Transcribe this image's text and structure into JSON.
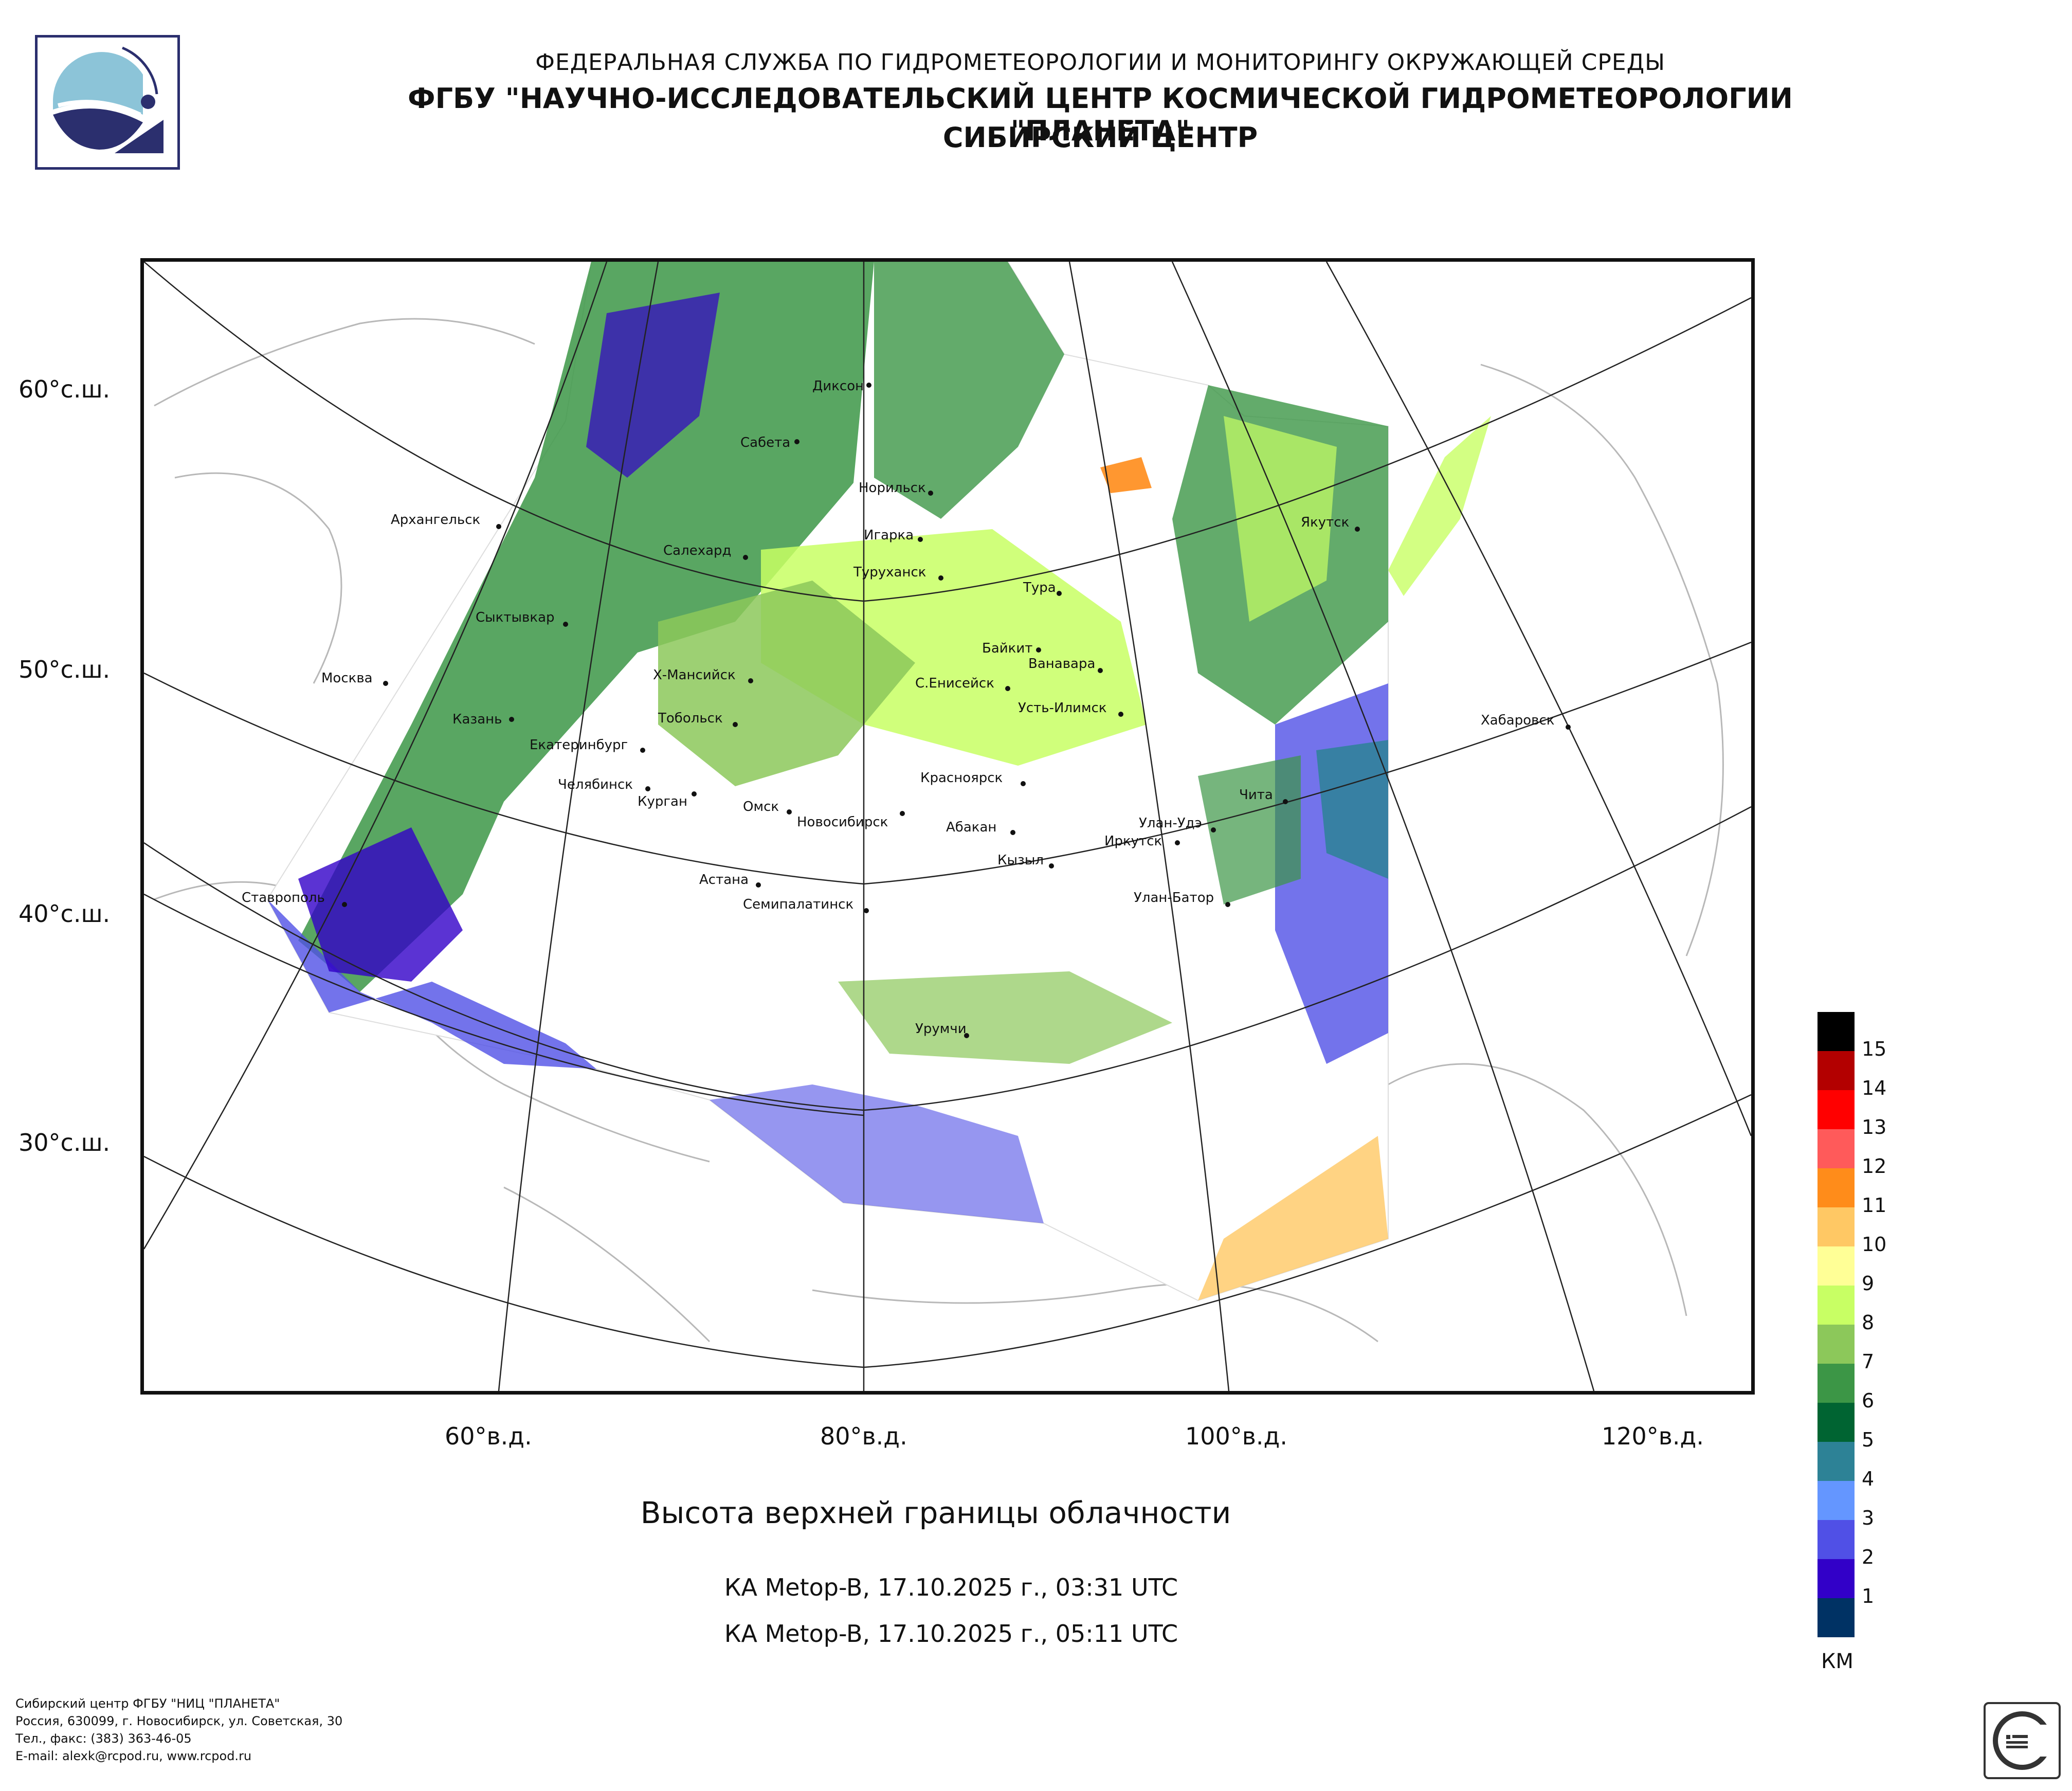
{
  "header": {
    "line1": "ФЕДЕРАЛЬНАЯ СЛУЖБА ПО ГИДРОМЕТЕОРОЛОГИИ И МОНИТОРИНГУ ОКРУЖАЮЩЕЙ СРЕДЫ",
    "line2": "ФГБУ \"НАУЧНО-ИССЛЕДОВАТЕЛЬСКИЙ ЦЕНТР КОСМИЧЕСКОЙ ГИДРОМЕТЕОРОЛОГИИ \"ПЛАНЕТА\"",
    "line3": "СИБИРСКИЙ ЦЕНТР"
  },
  "map": {
    "lat_labels": [
      "60°с.ш.",
      "50°с.ш.",
      "40°с.ш.",
      "30°с.ш."
    ],
    "lon_labels": [
      "60°в.д.",
      "80°в.д.",
      "100°в.д.",
      "120°в.д."
    ],
    "cities": [
      {
        "name": "Диксон"
      },
      {
        "name": "Сабета"
      },
      {
        "name": "Норильск"
      },
      {
        "name": "Архангельск"
      },
      {
        "name": "Игарка"
      },
      {
        "name": "Салехард"
      },
      {
        "name": "Туруханск"
      },
      {
        "name": "Тура"
      },
      {
        "name": "Якутск"
      },
      {
        "name": "Сыктывкар"
      },
      {
        "name": "Байкит"
      },
      {
        "name": "Ванавара"
      },
      {
        "name": "Москва"
      },
      {
        "name": "Х-Мансийск"
      },
      {
        "name": "С.Енисейск"
      },
      {
        "name": "Усть-Илимск"
      },
      {
        "name": "Казань"
      },
      {
        "name": "Тобольск"
      },
      {
        "name": "Хабаровск"
      },
      {
        "name": "Екатеринбург"
      },
      {
        "name": "Красноярск"
      },
      {
        "name": "Челябинск"
      },
      {
        "name": "Курган"
      },
      {
        "name": "Чита"
      },
      {
        "name": "Омск"
      },
      {
        "name": "Новосибирск"
      },
      {
        "name": "Улан-Удэ"
      },
      {
        "name": "Абакан"
      },
      {
        "name": "Иркутск"
      },
      {
        "name": "Кызыл"
      },
      {
        "name": "Ставрополь"
      },
      {
        "name": "Астана"
      },
      {
        "name": "Улан-Батор"
      },
      {
        "name": "Семипалатинск"
      },
      {
        "name": "Урумчи"
      }
    ]
  },
  "product": {
    "title": "Высота верхней границы облачности",
    "pass1": "КА Metop-B, 17.10.2025 г., 03:31 UTC",
    "pass2": "КА Metop-B, 17.10.2025 г., 05:11 UTC"
  },
  "legend": {
    "unit": "КМ",
    "levels": [
      "15",
      "14",
      "13",
      "12",
      "11",
      "10",
      "9",
      "8",
      "7",
      "6",
      "5",
      "4",
      "3",
      "2",
      "1"
    ],
    "colors": [
      "#000000",
      "#b30000",
      "#ff0000",
      "#ff5a5a",
      "#ff8c1a",
      "#ffc864",
      "#ffff96",
      "#c8ff64",
      "#8cc85a",
      "#3c9646",
      "#006432",
      "#2d8296",
      "#6496ff",
      "#5050e6",
      "#3200c8",
      "#003264"
    ]
  },
  "footer": {
    "line1": "Сибирский центр ФГБУ \"НИЦ \"ПЛАНЕТА\"",
    "line2": "Россия, 630099, г. Новосибирск, ул. Советская, 30",
    "line3": "Тел., факс: (383) 363-46-05",
    "line4": "E-mail: alexk@rcpod.ru, www.rcpod.ru"
  }
}
